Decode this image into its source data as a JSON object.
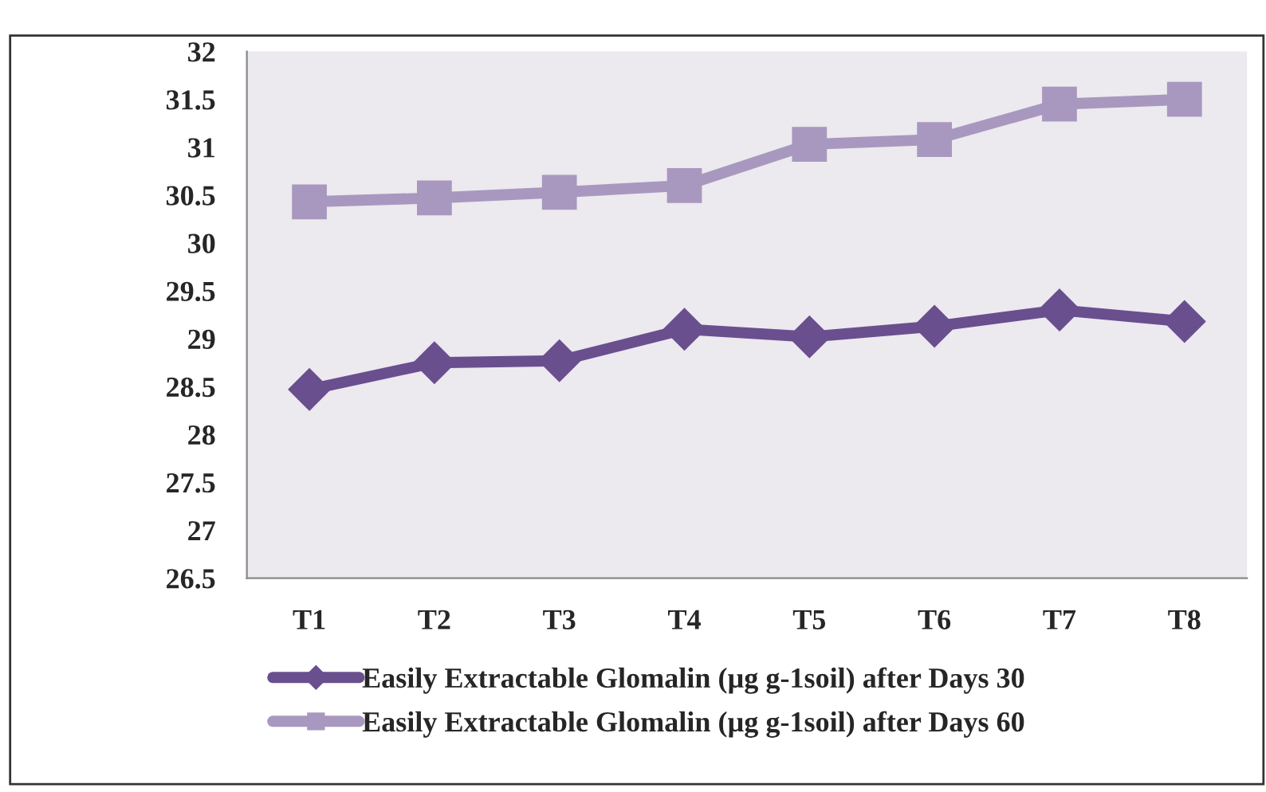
{
  "chart_data": {
    "type": "line",
    "categories": [
      "T1",
      "T2",
      "T3",
      "T4",
      "T5",
      "T6",
      "T7",
      "T8"
    ],
    "series": [
      {
        "name": "Easily Extractable Glomalin (µg g-1soil) after Days 30",
        "color": "#6a4f8f",
        "marker": "diamond",
        "values": [
          28.47,
          28.75,
          28.77,
          29.1,
          29.02,
          29.13,
          29.3,
          29.18
        ]
      },
      {
        "name": "Easily Extractable Glomalin (µg g-1soil) after Days 60",
        "color": "#a898bf",
        "marker": "square",
        "values": [
          30.43,
          30.47,
          30.53,
          30.6,
          31.03,
          31.08,
          31.45,
          31.5
        ]
      }
    ],
    "ylim": [
      26.5,
      32
    ],
    "yticks": [
      26.5,
      27,
      27.5,
      28,
      28.5,
      29,
      29.5,
      30,
      30.5,
      31,
      31.5,
      32
    ],
    "grid": false,
    "legend": "bottom",
    "line_style": "solid"
  }
}
